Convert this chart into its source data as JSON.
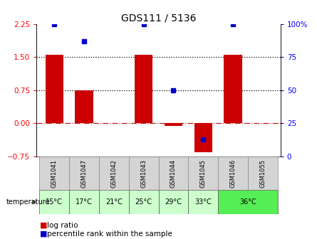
{
  "title": "GDS111 / 5136",
  "samples": [
    "GSM1041",
    "GSM1047",
    "GSM1042",
    "GSM1043",
    "GSM1044",
    "GSM1045",
    "GSM1046",
    "GSM1055"
  ],
  "log_ratio": [
    1.55,
    0.75,
    0.0,
    1.55,
    -0.05,
    -0.65,
    1.55,
    0.0
  ],
  "percentile_rank": [
    100,
    87,
    null,
    100,
    50,
    13,
    100,
    null
  ],
  "temperatures": [
    "15°C",
    "17°C",
    "21°C",
    "25°C",
    "29°C",
    "33°C",
    "36°C",
    "36°C"
  ],
  "temp_colors": [
    "#ccffcc",
    "#ccffcc",
    "#ccffcc",
    "#ccffcc",
    "#ccffcc",
    "#ccffcc",
    "#55ee55",
    "#55ee55"
  ],
  "ylim_left": [
    -0.75,
    2.25
  ],
  "ylim_right": [
    0,
    100
  ],
  "yticks_left": [
    -0.75,
    0.0,
    0.75,
    1.5,
    2.25
  ],
  "yticks_right": [
    0,
    25,
    50,
    75,
    100
  ],
  "hlines_dotted": [
    0.75,
    1.5
  ],
  "hline_dashdot": 0.0,
  "bar_color": "#cc0000",
  "dot_color": "#0000cc",
  "bar_width": 0.6,
  "gsm_bg": "#d4d4d4",
  "background_color": "#ffffff",
  "title_fontsize": 10,
  "tick_fontsize": 7.5,
  "legend_fontsize": 7.5
}
